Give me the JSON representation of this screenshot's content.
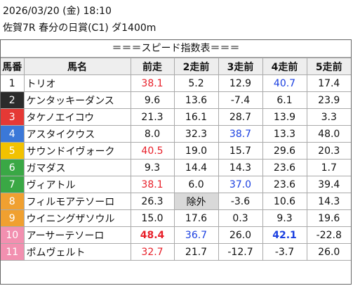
{
  "header": {
    "date": "2026/03/20 (金) 18:10",
    "race": "佐賀7R 春分の日賞(C1) ダ1400m"
  },
  "table": {
    "title": "＝＝＝スピード指数表＝＝＝",
    "columns": [
      "馬番",
      "馬名",
      "前走",
      "2走前",
      "3走前",
      "4走前",
      "5走前"
    ],
    "rows": [
      {
        "number": "1",
        "gate_color": "#ffffff",
        "name": "トリオ",
        "cells": [
          {
            "text": "38.1",
            "color": "#e8202a"
          },
          "5.2",
          "12.9",
          {
            "text": "40.7",
            "color": "#1a3fe0"
          },
          "17.4"
        ]
      },
      {
        "number": "2",
        "gate_color": "#2b2b2b",
        "name": "ケンタッキーダンス",
        "cells": [
          "9.6",
          "13.6",
          "-7.4",
          "6.1",
          "23.9"
        ]
      },
      {
        "number": "3",
        "gate_color": "#e53935",
        "name": "タケノエイコウ",
        "cells": [
          "21.3",
          "16.1",
          "28.7",
          "13.9",
          "3.3"
        ]
      },
      {
        "number": "4",
        "gate_color": "#3b78d8",
        "name": "アスタイクウス",
        "cells": [
          "8.0",
          "32.3",
          {
            "text": "38.7",
            "color": "#1a3fe0"
          },
          "13.3",
          "48.0"
        ]
      },
      {
        "number": "5",
        "gate_color": "#f2c200",
        "name": "サウンドイヴォーク",
        "cells": [
          {
            "text": "40.5",
            "color": "#e8202a"
          },
          "19.0",
          "15.7",
          "29.6",
          "20.3"
        ]
      },
      {
        "number": "6",
        "gate_color": "#3aa845",
        "name": "ガマダス",
        "cells": [
          "9.3",
          "14.4",
          "14.3",
          "23.6",
          "1.7"
        ]
      },
      {
        "number": "7",
        "gate_color": "#3aa845",
        "name": "ヴィアトル",
        "cells": [
          {
            "text": "38.1",
            "color": "#e8202a"
          },
          "6.0",
          {
            "text": "37.0",
            "color": "#1a3fe0"
          },
          "23.6",
          "39.4"
        ]
      },
      {
        "number": "8",
        "gate_color": "#f0a030",
        "name": "フィルモアテソーロ",
        "cells": [
          "26.3",
          {
            "text": "除外",
            "background": "#d9d9d9"
          },
          "-3.6",
          "10.6",
          "14.3"
        ]
      },
      {
        "number": "9",
        "gate_color": "#f0a030",
        "name": "ウイニングザソウル",
        "cells": [
          "15.0",
          "17.6",
          "0.3",
          "9.3",
          "19.6"
        ]
      },
      {
        "number": "10",
        "gate_color": "#f290b0",
        "name": "アーサーテソーロ",
        "cells": [
          {
            "text": "48.4",
            "color": "#e8202a",
            "bold": true
          },
          {
            "text": "36.7",
            "color": "#1a3fe0"
          },
          "26.0",
          {
            "text": "42.1",
            "color": "#1a3fe0",
            "bold": true
          },
          "-22.8"
        ]
      },
      {
        "number": "11",
        "gate_color": "#f290b0",
        "name": "ポムヴェルト",
        "cells": [
          {
            "text": "32.7",
            "color": "#e8202a"
          },
          "21.7",
          "-12.7",
          "-3.7",
          "26.0"
        ]
      }
    ]
  }
}
